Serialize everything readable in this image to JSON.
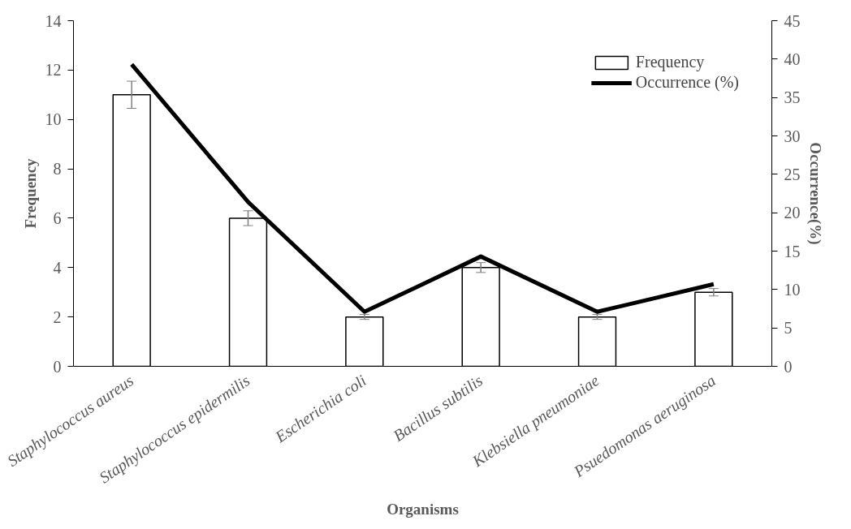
{
  "chart_data": {
    "type": "bar",
    "categories": [
      "Staphylococcus aureus",
      "Staphylococcus epidermilis",
      "Escherichia coli",
      "Bacillus subtilis",
      "Klebsiella pneumoniae",
      "Psuedomonas aeruginosa"
    ],
    "xlabel": "Organisms",
    "ylabel": "Frequency",
    "y2label": "Occurrence(%)",
    "ylim": [
      0,
      14
    ],
    "yticks": [
      0,
      2,
      4,
      6,
      8,
      10,
      12,
      14
    ],
    "y2lim": [
      0,
      45
    ],
    "y2ticks": [
      0,
      5,
      10,
      15,
      20,
      25,
      30,
      35,
      40,
      45
    ],
    "series": [
      {
        "name": "Frequency",
        "color": "#ffffff",
        "values": [
          11,
          6,
          2,
          4,
          2,
          3
        ],
        "errors": [
          0.55,
          0.3,
          0.1,
          0.2,
          0.1,
          0.15
        ]
      },
      {
        "name": "Occurrence (%)",
        "type": "line",
        "axis": "y2",
        "color": "#000000",
        "values": [
          39.3,
          21.4,
          7.1,
          14.3,
          7.1,
          10.7
        ]
      }
    ],
    "legend": "top right",
    "grid": false
  }
}
